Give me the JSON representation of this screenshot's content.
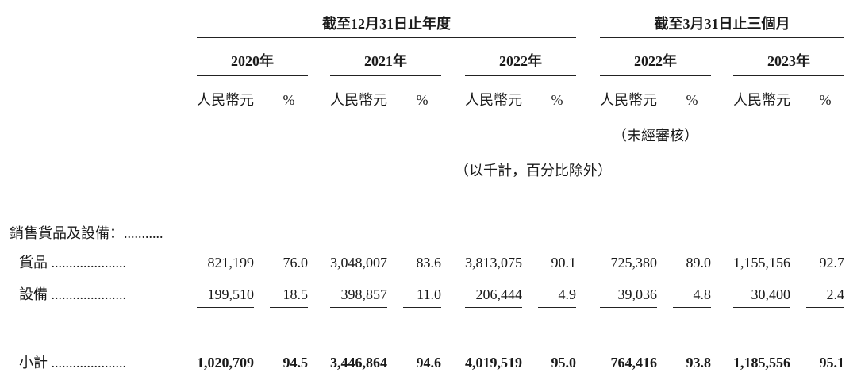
{
  "header": {
    "period_year": "截至12月31日止年度",
    "period_quarter": "截至3月31日止三個月"
  },
  "years": [
    "2020年",
    "2021年",
    "2022年",
    "2022年",
    "2023年"
  ],
  "col_currency": "人民幣元",
  "col_pct": "%",
  "unaudited": "（未經審核）",
  "unit_note": "（以千計，百分比除外）",
  "section_label": "銷售貨品及設備：...........",
  "rows": [
    {
      "label": "貨品 .....................",
      "values": [
        "821,199",
        "76.0",
        "3,048,007",
        "83.6",
        "3,813,075",
        "90.1",
        "725,380",
        "89.0",
        "1,155,156",
        "92.7"
      ]
    },
    {
      "label": "設備 .....................",
      "values": [
        "199,510",
        "18.5",
        "398,857",
        "11.0",
        "206,444",
        "4.9",
        "39,036",
        "4.8",
        "30,400",
        "2.4"
      ]
    }
  ],
  "subtotal": {
    "label": "小計 .....................",
    "values": [
      "1,020,709",
      "94.5",
      "3,446,864",
      "94.6",
      "4,019,519",
      "95.0",
      "764,416",
      "93.8",
      "1,185,556",
      "95.1"
    ]
  }
}
